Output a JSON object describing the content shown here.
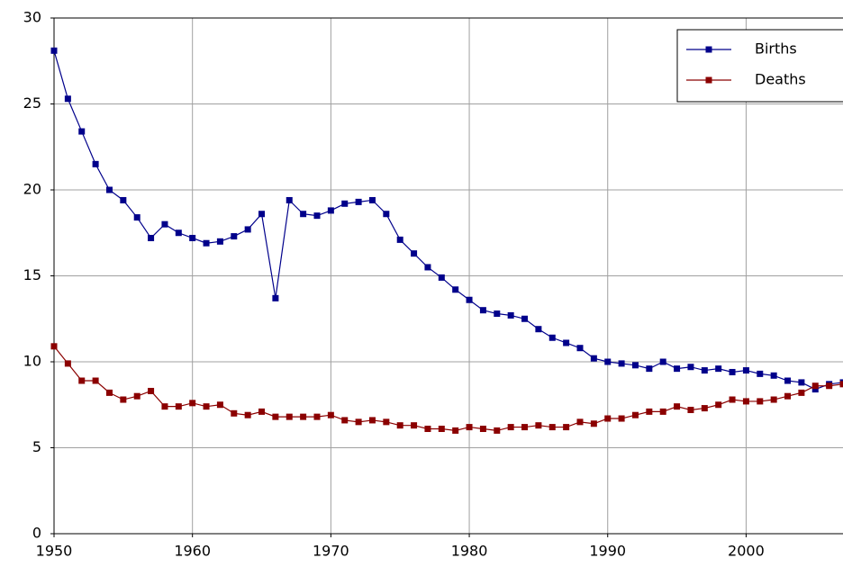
{
  "chart_data": {
    "type": "line",
    "x": [
      1950,
      1951,
      1952,
      1953,
      1954,
      1955,
      1956,
      1957,
      1958,
      1959,
      1960,
      1961,
      1962,
      1963,
      1964,
      1965,
      1966,
      1967,
      1968,
      1969,
      1970,
      1971,
      1972,
      1973,
      1974,
      1975,
      1976,
      1977,
      1978,
      1979,
      1980,
      1981,
      1982,
      1983,
      1984,
      1985,
      1986,
      1987,
      1988,
      1989,
      1990,
      1991,
      1992,
      1993,
      1994,
      1995,
      1996,
      1997,
      1998,
      1999,
      2000,
      2001,
      2002,
      2003,
      2004,
      2005,
      2006,
      2007
    ],
    "series": [
      {
        "name": "Births",
        "color": "#00008b",
        "values": [
          28.1,
          25.3,
          23.4,
          21.5,
          20.0,
          19.4,
          18.4,
          17.2,
          18.0,
          17.5,
          17.2,
          16.9,
          17.0,
          17.3,
          17.7,
          18.6,
          13.7,
          19.4,
          18.6,
          18.5,
          18.8,
          19.2,
          19.3,
          19.4,
          18.6,
          17.1,
          16.3,
          15.5,
          14.9,
          14.2,
          13.6,
          13.0,
          12.8,
          12.7,
          12.5,
          11.9,
          11.4,
          11.1,
          10.8,
          10.2,
          10.0,
          9.9,
          9.8,
          9.6,
          10.0,
          9.6,
          9.7,
          9.5,
          9.6,
          9.4,
          9.5,
          9.3,
          9.2,
          8.9,
          8.8,
          8.4,
          8.7,
          8.8
        ]
      },
      {
        "name": "Deaths",
        "color": "#8b0000",
        "values": [
          10.9,
          9.9,
          8.9,
          8.9,
          8.2,
          7.8,
          8.0,
          8.3,
          7.4,
          7.4,
          7.6,
          7.4,
          7.5,
          7.0,
          6.9,
          7.1,
          6.8,
          6.8,
          6.8,
          6.8,
          6.9,
          6.6,
          6.5,
          6.6,
          6.5,
          6.3,
          6.3,
          6.1,
          6.1,
          6.0,
          6.2,
          6.1,
          6.0,
          6.2,
          6.2,
          6.3,
          6.2,
          6.2,
          6.5,
          6.4,
          6.7,
          6.7,
          6.9,
          7.1,
          7.1,
          7.4,
          7.2,
          7.3,
          7.5,
          7.8,
          7.7,
          7.7,
          7.8,
          8.0,
          8.2,
          8.6,
          8.6,
          8.7
        ]
      }
    ],
    "xlim": [
      1950,
      2007
    ],
    "xticks": [
      1950,
      1960,
      1970,
      1980,
      1990,
      2000
    ],
    "ylim": [
      0,
      30
    ],
    "yticks": [
      0,
      5,
      10,
      15,
      20,
      25,
      30
    ],
    "grid": true,
    "legend": "top-right"
  }
}
